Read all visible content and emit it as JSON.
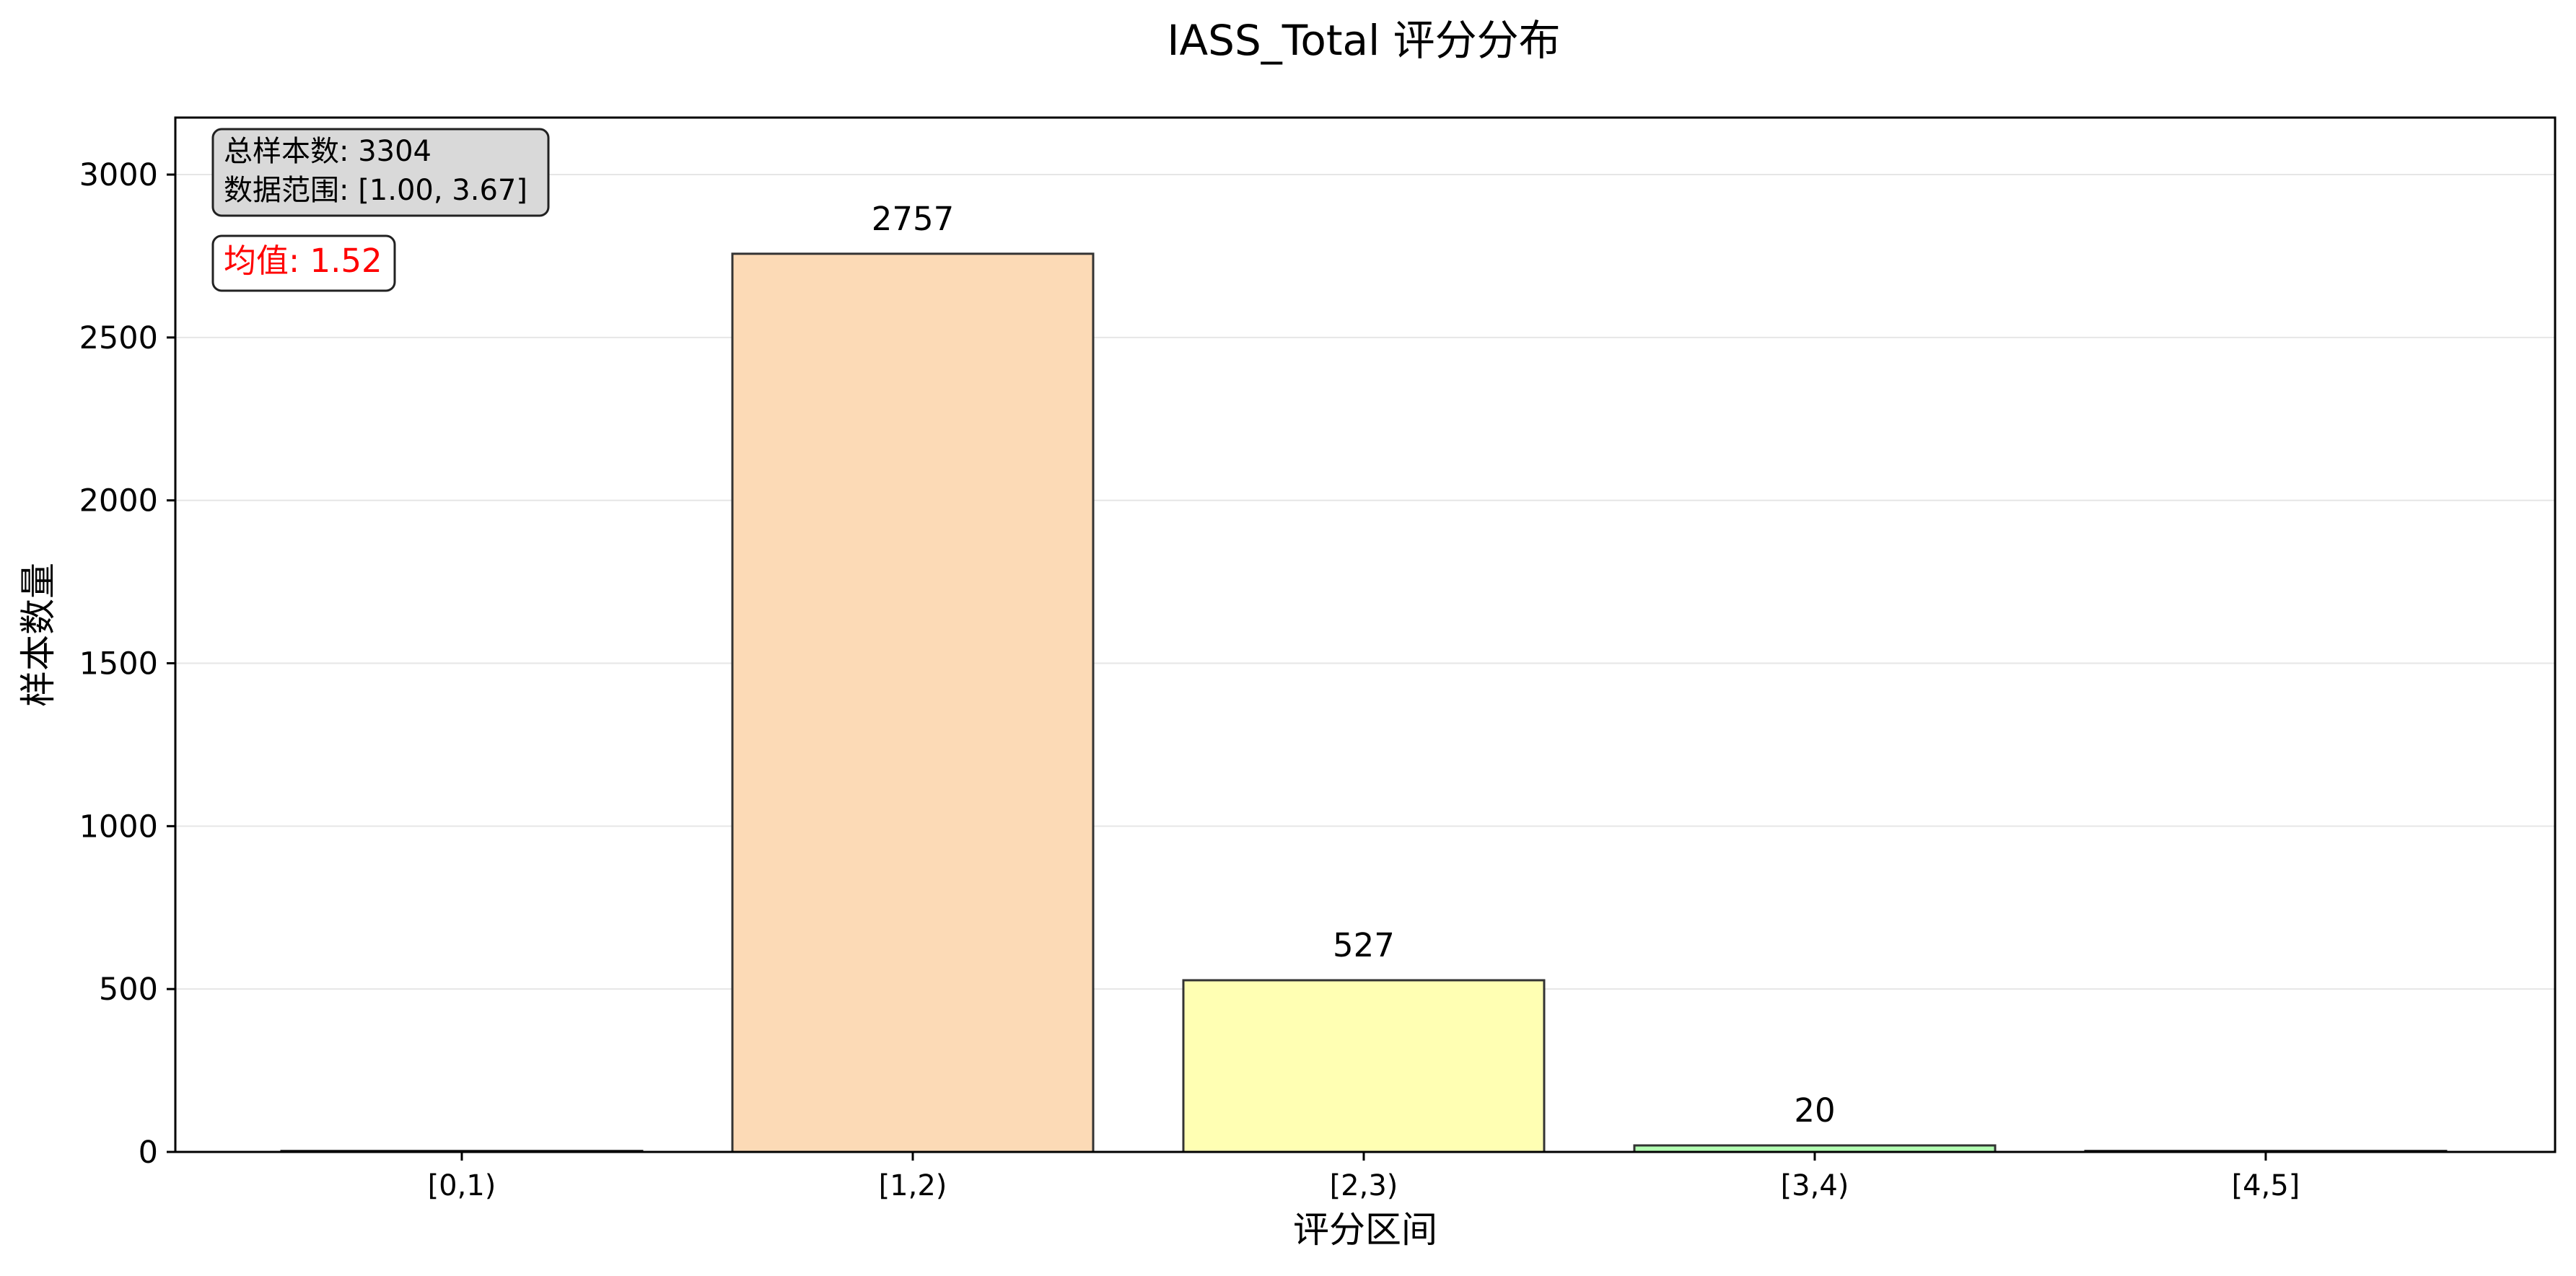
{
  "chart_data": {
    "type": "bar",
    "title": "IASS_Total 评分分布",
    "xlabel": "评分区间",
    "ylabel": "样本数量",
    "categories": [
      "[0,1)",
      "[1,2)",
      "[2,3)",
      "[3,4)",
      "[4,5]"
    ],
    "values": [
      0,
      2757,
      527,
      20,
      0
    ],
    "data_labels": [
      "",
      "2757",
      "527",
      "20",
      ""
    ],
    "colors": [
      "#ffb3b3",
      "#fcdab6",
      "#ffffb3",
      "#b3ffb3",
      "#b3d9ff"
    ],
    "edge_color": "#333333",
    "ylim": [
      0,
      3175
    ],
    "yticks": [
      0,
      500,
      1000,
      1500,
      2000,
      2500,
      3000
    ],
    "grid": "y",
    "annotations": {
      "info_lines": [
        "总样本数: 3304",
        "数据范围: [1.00, 3.67]"
      ],
      "mean_text": "均值: 1.52",
      "mean_color": "#ff0000"
    }
  }
}
